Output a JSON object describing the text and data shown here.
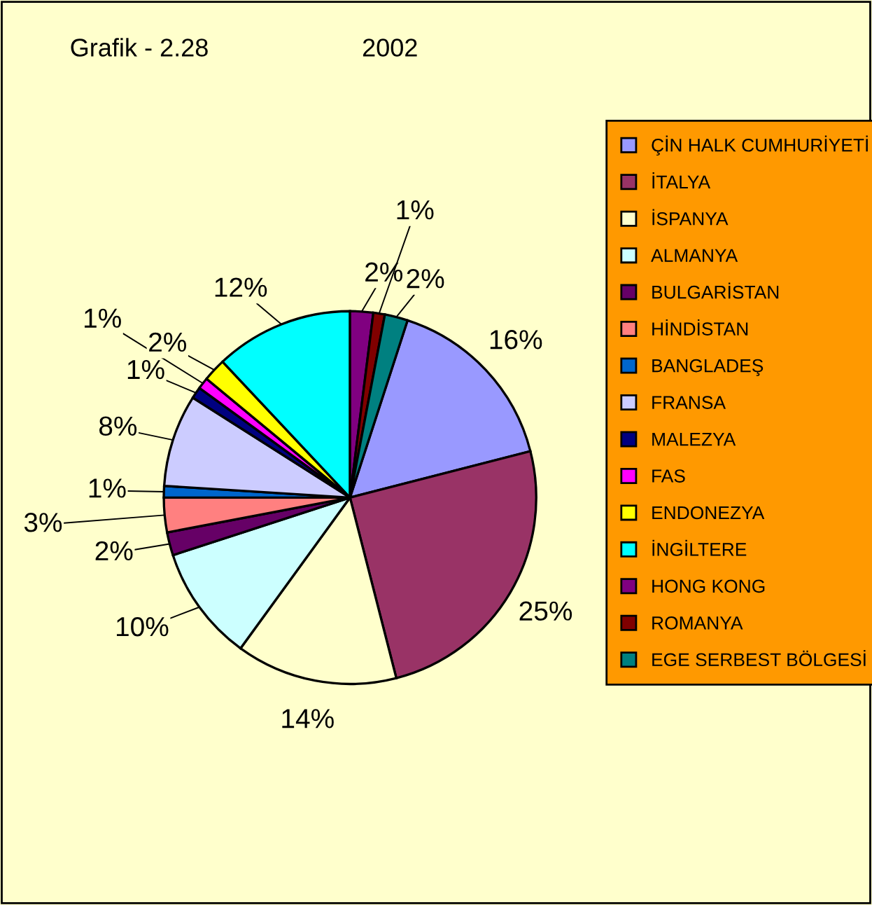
{
  "chart_data": {
    "type": "pie",
    "title": "Grafik - 2.28",
    "subtitle": "2002",
    "categories": [
      "ÇİN HALK CUMHURİYETİ",
      "İTALYA",
      "İSPANYA",
      "ALMANYA",
      "BULGARİSTAN",
      "HİNDİSTAN",
      "BANGLADEŞ",
      "FRANSA",
      "MALEZYA",
      "FAS",
      "ENDONEZYA",
      "İNGİLTERE",
      "HONG KONG",
      "ROMANYA",
      "EGE SERBEST BÖLGESİ"
    ],
    "values": [
      16,
      25,
      14,
      10,
      2,
      3,
      1,
      8,
      1,
      1,
      2,
      12,
      2,
      1,
      2
    ],
    "colors": [
      "#9999ff",
      "#993366",
      "#ffffcc",
      "#ccffff",
      "#660066",
      "#ff8080",
      "#0066cc",
      "#ccccff",
      "#000080",
      "#ff00ff",
      "#ffff00",
      "#00ffff",
      "#800080",
      "#800000",
      "#008080"
    ],
    "value_labels": [
      "16%",
      "25%",
      "14%",
      "10%",
      "2%",
      "3%",
      "1%",
      "8%",
      "1%",
      "1%",
      "2%",
      "12%",
      "2%",
      "1%",
      "2%"
    ],
    "legend": "right"
  }
}
